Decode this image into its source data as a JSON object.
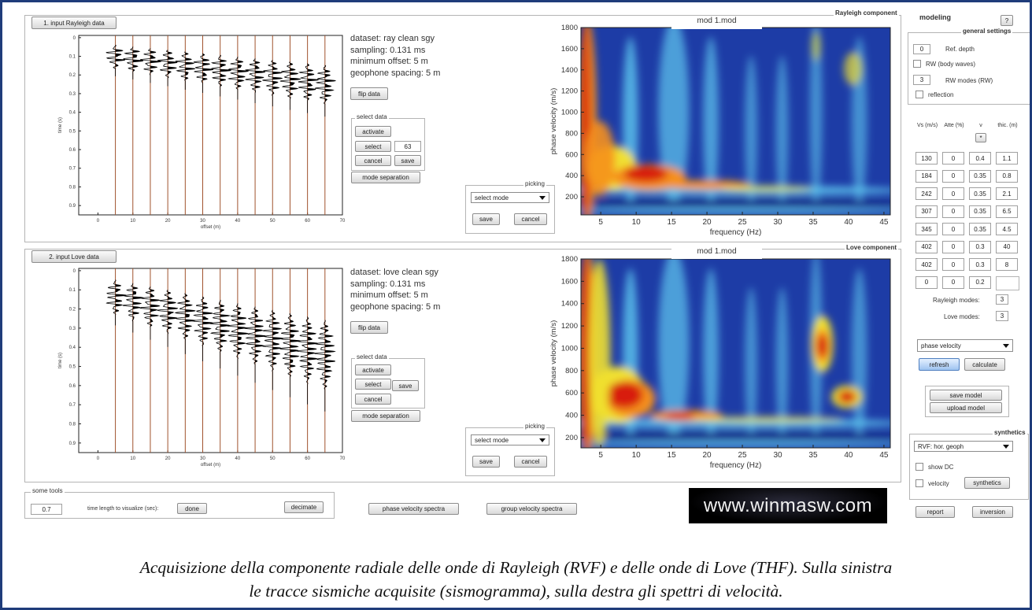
{
  "rayleigh": {
    "load_button": "1. input Rayleigh data",
    "info": [
      "dataset: ray clean sgy",
      "sampling: 0.131 ms",
      "minimum offset: 5 m",
      "geophone spacing: 5 m"
    ],
    "flip_button": "flip data",
    "select_data": {
      "title": "select data",
      "activate": "activate",
      "select": "select",
      "field": "63",
      "cancel": "cancel",
      "save": "save"
    },
    "mode_separation": "mode separation",
    "picking": {
      "title": "picking",
      "dropdown": "select mode",
      "save": "save",
      "cancel": "cancel"
    },
    "seismogram": {
      "y_label": "time (s)",
      "x_label": "offset (m)",
      "y_ticks": [
        0,
        0.1,
        0.2,
        0.3,
        0.4,
        0.5,
        0.6,
        0.7,
        0.8,
        0.9
      ],
      "x_ticks": [
        0,
        10,
        20,
        30,
        40,
        50,
        60,
        70
      ]
    },
    "spectrum": {
      "panel_title": "Rayleigh component",
      "title": "mod 1.mod",
      "y_label": "phase velocity (m/s)",
      "x_label": "frequency (Hz)",
      "y_ticks": [
        200,
        400,
        600,
        800,
        1000,
        1200,
        1400,
        1600,
        1800
      ],
      "x_ticks": [
        5,
        10,
        15,
        20,
        25,
        30,
        35,
        40,
        45
      ]
    }
  },
  "love": {
    "load_button": "2. input Love data",
    "info": [
      "dataset: love clean sgy",
      "sampling: 0.131 ms",
      "minimum offset: 5 m",
      "geophone spacing: 5 m"
    ],
    "flip_button": "flip data",
    "select_data": {
      "title": "select data",
      "activate": "activate",
      "select": "select",
      "cancel": "cancel",
      "save": "save"
    },
    "mode_separation": "mode separation",
    "picking": {
      "title": "picking",
      "dropdown": "select mode",
      "save": "save",
      "cancel": "cancel"
    },
    "seismogram": {
      "y_label": "time (s)",
      "x_label": "offset (m)",
      "y_ticks": [
        0,
        0.1,
        0.2,
        0.3,
        0.4,
        0.5,
        0.6,
        0.7,
        0.8,
        0.9
      ],
      "x_ticks": [
        0,
        10,
        20,
        30,
        40,
        50,
        60,
        70
      ]
    },
    "spectrum": {
      "panel_title": "Love component",
      "title": "mod 1.mod",
      "y_label": "phase velocity (m/s)",
      "x_label": "frequency (Hz)",
      "y_ticks": [
        200,
        400,
        600,
        800,
        1000,
        1200,
        1400,
        1600,
        1800
      ],
      "x_ticks": [
        5,
        10,
        15,
        20,
        25,
        30,
        35,
        40,
        45
      ]
    }
  },
  "tools": {
    "title": "some tools",
    "time_field": "0.7",
    "time_label": "time length to visualize (sec):",
    "done": "done",
    "decimate": "decimate",
    "phase_spectra": "phase velocity spectra",
    "group_spectra": "group velocity spectra"
  },
  "logo": "www.winmasw.com",
  "modeling": {
    "title": "modeling",
    "help": "?",
    "general_settings": {
      "title": "general settings",
      "ref_depth_value": "0",
      "ref_depth_label": "Ref. depth",
      "body_waves": "RW (body waves)",
      "modes_value": "3",
      "modes_label": "RW modes (RW)",
      "reflection": "reflection"
    },
    "table": {
      "headers": [
        "Vs (m/s)",
        "Atte (%)",
        "ν",
        "thic. (m)"
      ],
      "header_button": "*",
      "rows": [
        [
          130,
          0,
          0.4,
          1.1
        ],
        [
          184,
          0,
          0.35,
          0.8
        ],
        [
          242,
          0,
          0.35,
          2.1
        ],
        [
          307,
          0,
          0.35,
          6.5
        ],
        [
          345,
          0,
          0.35,
          4.5
        ],
        [
          402,
          0,
          0.3,
          40
        ],
        [
          402,
          0,
          0.3,
          8
        ],
        [
          0,
          0,
          0.2
        ]
      ]
    },
    "rayleigh_modes_label": "Rayleigh modes:",
    "rayleigh_modes": "3",
    "love_modes_label": "Love modes:",
    "love_modes": "3",
    "velocity_dropdown": "phase velocity",
    "refresh": "refresh",
    "calculate": "calculate",
    "save_model": "save model",
    "upload_model": "upload model",
    "synthetics": {
      "title": "synthetics",
      "dropdown": "RVF: hor. geoph",
      "show_dc": "show DC",
      "velocity": "velocity",
      "button": "synthetics"
    },
    "report": "report",
    "inversion": "inversion"
  },
  "caption": [
    "Acquisizione della componente radiale delle onde di Rayleigh (RVF) e delle onde di Love (THF). Sulla sinistra",
    "le tracce sismiche acquisite (sismogramma), sulla destra gli spettri di velocità."
  ]
}
